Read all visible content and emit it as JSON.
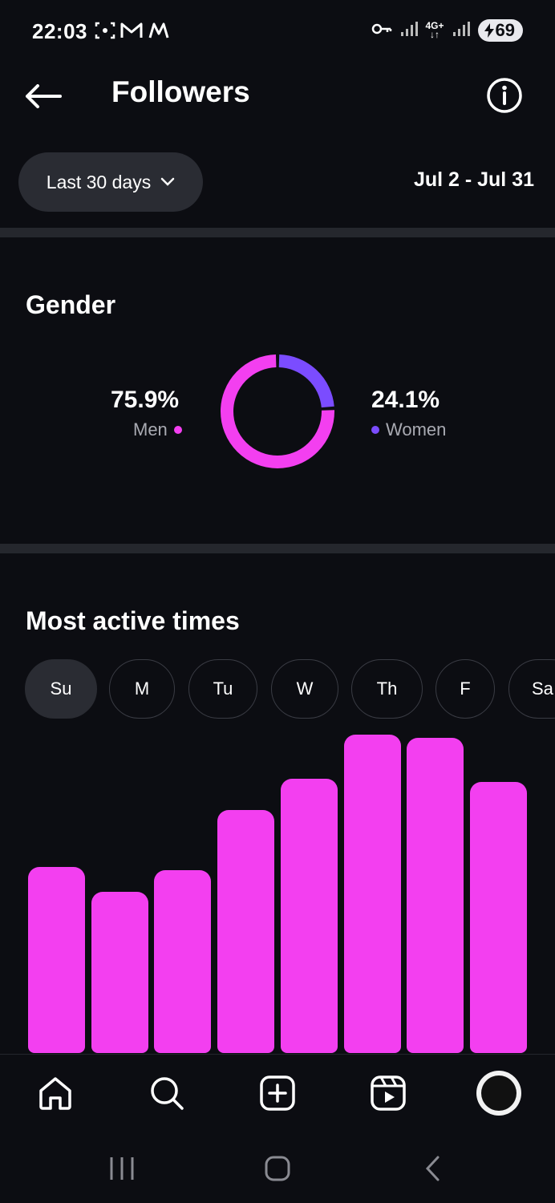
{
  "status_bar": {
    "time": "22:03",
    "battery": "69",
    "network_label": "4G+",
    "icons_left": [
      "screenshot-icon",
      "gmail-icon",
      "m-app-icon"
    ],
    "icons_right": [
      "key-icon",
      "signal-icon",
      "4g-icon",
      "signal-icon",
      "battery-icon"
    ]
  },
  "header": {
    "title": "Followers",
    "back_icon": "arrow-left-icon",
    "info_icon": "info-icon"
  },
  "filter": {
    "range_label": "Last 30 days",
    "dates": "Jul 2 - Jul 31"
  },
  "gender": {
    "title": "Gender",
    "men_value": "75.9%",
    "men_label": "Men",
    "women_value": "24.1%",
    "women_label": "Women",
    "men_color": "#f33ff0",
    "women_color": "#7b4cff",
    "men_fraction": 0.759,
    "women_fraction": 0.241
  },
  "active_times": {
    "title": "Most active times",
    "days": [
      "Su",
      "M",
      "Tu",
      "W",
      "Th",
      "F",
      "Sa"
    ],
    "selected_day": "Su"
  },
  "chart_data": {
    "type": "bar",
    "categories": [
      "",
      "",
      "",
      "",
      "",
      "",
      "",
      ""
    ],
    "values": [
      59,
      51,
      58,
      77,
      87,
      101,
      100,
      86
    ],
    "ylim": [
      0,
      105
    ],
    "color": "#f33ff0",
    "grid": false,
    "xlabel": "",
    "ylabel": ""
  },
  "bottom_nav": {
    "items": [
      "home-icon",
      "search-icon",
      "create-icon",
      "reels-icon"
    ],
    "profile": "avatar"
  },
  "system_nav": [
    "recents-icon",
    "home-button-icon",
    "back-icon"
  ]
}
